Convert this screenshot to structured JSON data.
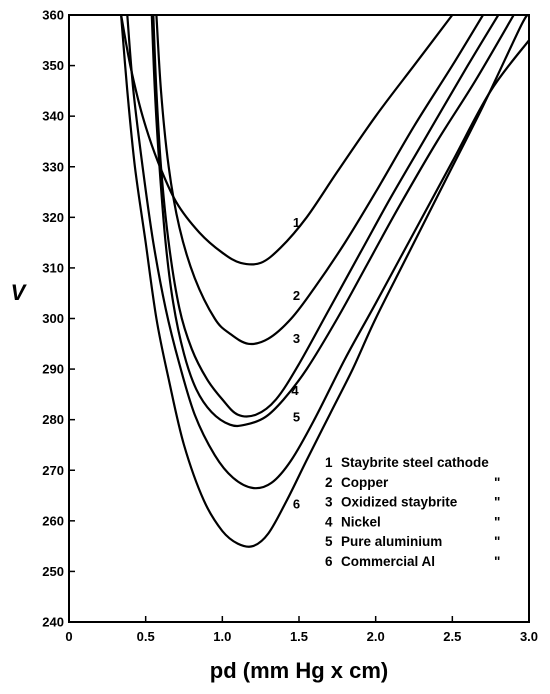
{
  "chart_data": {
    "type": "line",
    "xlabel": "pd (mm Hg x cm)",
    "ylabel": "V",
    "xlim": [
      0,
      3.0
    ],
    "ylim": [
      240,
      360
    ],
    "x_ticks": [
      "0",
      "0.5",
      "1.0",
      "1.5",
      "2.0",
      "2.5",
      "3.0"
    ],
    "y_ticks": [
      "240",
      "250",
      "260",
      "270",
      "280",
      "290",
      "300",
      "310",
      "320",
      "330",
      "340",
      "350",
      "360"
    ],
    "grid": false,
    "series": [
      {
        "name": "1",
        "points": [
          [
            0.34,
            360
          ],
          [
            0.4,
            350
          ],
          [
            0.48,
            340
          ],
          [
            0.58,
            331
          ],
          [
            0.7,
            323
          ],
          [
            0.85,
            317
          ],
          [
            1.0,
            313
          ],
          [
            1.12,
            311
          ],
          [
            1.25,
            311
          ],
          [
            1.38,
            314
          ],
          [
            1.55,
            320
          ],
          [
            1.75,
            329
          ],
          [
            2.0,
            340
          ],
          [
            2.25,
            350
          ],
          [
            2.5,
            360
          ]
        ]
      },
      {
        "name": "2",
        "points": [
          [
            0.57,
            360
          ],
          [
            0.6,
            345
          ],
          [
            0.65,
            330
          ],
          [
            0.72,
            318
          ],
          [
            0.82,
            308
          ],
          [
            0.95,
            300
          ],
          [
            1.05,
            297
          ],
          [
            1.17,
            295
          ],
          [
            1.3,
            296
          ],
          [
            1.45,
            300
          ],
          [
            1.6,
            306
          ],
          [
            1.8,
            315
          ],
          [
            2.0,
            325
          ],
          [
            2.25,
            338
          ],
          [
            2.5,
            350
          ],
          [
            2.7,
            360
          ]
        ]
      },
      {
        "name": "3",
        "points": [
          [
            0.55,
            360
          ],
          [
            0.57,
            345
          ],
          [
            0.6,
            330
          ],
          [
            0.65,
            315
          ],
          [
            0.72,
            302
          ],
          [
            0.8,
            294
          ],
          [
            0.9,
            288
          ],
          [
            1.0,
            284
          ],
          [
            1.1,
            281
          ],
          [
            1.22,
            281
          ],
          [
            1.35,
            284
          ],
          [
            1.5,
            291
          ],
          [
            1.7,
            302
          ],
          [
            1.9,
            313
          ],
          [
            2.1,
            324
          ],
          [
            2.35,
            337
          ],
          [
            2.6,
            350
          ],
          [
            2.8,
            360
          ]
        ]
      },
      {
        "name": "4",
        "points": [
          [
            0.54,
            360
          ],
          [
            0.56,
            345
          ],
          [
            0.59,
            330
          ],
          [
            0.63,
            315
          ],
          [
            0.68,
            303
          ],
          [
            0.75,
            293
          ],
          [
            0.83,
            286
          ],
          [
            0.93,
            281.5
          ],
          [
            1.05,
            279
          ],
          [
            1.15,
            279
          ],
          [
            1.28,
            280.5
          ],
          [
            1.4,
            284
          ],
          [
            1.55,
            290
          ],
          [
            1.75,
            300
          ],
          [
            1.95,
            311
          ],
          [
            2.15,
            322
          ],
          [
            2.4,
            335
          ],
          [
            2.65,
            347
          ],
          [
            2.9,
            360
          ]
        ]
      },
      {
        "name": "5",
        "points": [
          [
            0.38,
            360
          ],
          [
            0.42,
            345
          ],
          [
            0.48,
            330
          ],
          [
            0.55,
            315
          ],
          [
            0.63,
            302
          ],
          [
            0.72,
            291
          ],
          [
            0.82,
            281
          ],
          [
            0.95,
            273
          ],
          [
            1.07,
            268.5
          ],
          [
            1.2,
            266.5
          ],
          [
            1.32,
            267.5
          ],
          [
            1.45,
            272
          ],
          [
            1.6,
            280
          ],
          [
            1.8,
            292
          ],
          [
            2.0,
            303
          ],
          [
            2.25,
            317
          ],
          [
            2.5,
            331
          ],
          [
            2.75,
            345
          ],
          [
            3.0,
            355
          ]
        ]
      },
      {
        "name": "6",
        "points": [
          [
            0.34,
            360
          ],
          [
            0.38,
            345
          ],
          [
            0.43,
            330
          ],
          [
            0.5,
            315
          ],
          [
            0.57,
            300
          ],
          [
            0.65,
            288
          ],
          [
            0.75,
            275
          ],
          [
            0.88,
            264
          ],
          [
            1.0,
            258
          ],
          [
            1.1,
            255.5
          ],
          [
            1.2,
            255
          ],
          [
            1.3,
            257.5
          ],
          [
            1.42,
            264
          ],
          [
            1.55,
            272
          ],
          [
            1.7,
            281
          ],
          [
            1.85,
            290
          ],
          [
            2.0,
            300
          ],
          [
            2.2,
            312
          ],
          [
            2.45,
            327
          ],
          [
            2.7,
            342
          ],
          [
            2.95,
            358
          ],
          [
            3.0,
            360
          ]
        ]
      }
    ],
    "curve_labels": [
      {
        "text": "1",
        "x": 1.46,
        "y": 319
      },
      {
        "text": "2",
        "x": 1.46,
        "y": 304.5
      },
      {
        "text": "3",
        "x": 1.46,
        "y": 296
      },
      {
        "text": "4",
        "x": 1.45,
        "y": 285.8
      },
      {
        "text": "5",
        "x": 1.46,
        "y": 280.5
      },
      {
        "text": "6",
        "x": 1.46,
        "y": 263.3
      }
    ],
    "legend": {
      "placement": "bottom-right",
      "entries": [
        {
          "num": "1",
          "label": "Staybrite steel cathode",
          "ditto": ""
        },
        {
          "num": "2",
          "label": "Copper",
          "ditto": "\""
        },
        {
          "num": "3",
          "label": "Oxidized staybrite",
          "ditto": "\""
        },
        {
          "num": "4",
          "label": "Nickel",
          "ditto": "\""
        },
        {
          "num": "5",
          "label": "Pure aluminium",
          "ditto": "\""
        },
        {
          "num": "6",
          "label": "Commercial Al",
          "ditto": "\""
        }
      ]
    }
  }
}
